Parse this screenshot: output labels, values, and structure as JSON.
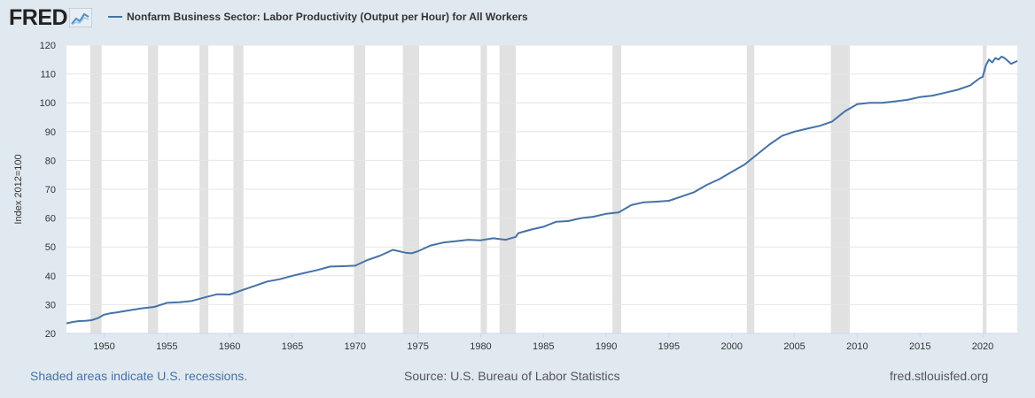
{
  "header": {
    "logo_text": "FRED",
    "logo_icon": "line-graph-icon",
    "legend_label": "Nonfarm Business Sector: Labor Productivity (Output per Hour) for All Workers",
    "series_color": "#4572a7"
  },
  "footer": {
    "recession_note": "Shaded areas indicate U.S. recessions.",
    "source": "Source: U.S. Bureau of Labor Statistics",
    "site": "fred.stlouisfed.org"
  },
  "chart_data": {
    "type": "line",
    "title": "",
    "xlabel": "",
    "ylabel": "Index 2012=100",
    "xlim": [
      1947.0,
      2022.75
    ],
    "ylim": [
      20,
      120
    ],
    "x_ticks": [
      1950,
      1955,
      1960,
      1965,
      1970,
      1975,
      1980,
      1985,
      1990,
      1995,
      2000,
      2005,
      2010,
      2015,
      2020
    ],
    "y_ticks": [
      20,
      30,
      40,
      50,
      60,
      70,
      80,
      90,
      100,
      110,
      120
    ],
    "grid": "horizontal",
    "background_color": "#ffffff",
    "recession_color": "#e1e1e1",
    "recessions": [
      [
        1948.9,
        1949.8
      ],
      [
        1953.5,
        1954.3
      ],
      [
        1957.6,
        1958.3
      ],
      [
        1960.3,
        1961.1
      ],
      [
        1969.9,
        1970.8
      ],
      [
        1973.8,
        1975.1
      ],
      [
        1980.0,
        1980.5
      ],
      [
        1981.5,
        1982.8
      ],
      [
        1990.5,
        1991.2
      ],
      [
        2001.2,
        2001.8
      ],
      [
        2007.9,
        2009.4
      ],
      [
        2020.0,
        2020.3
      ]
    ],
    "series": [
      {
        "values_x": [
          1947.0,
          1947.5,
          1948.0,
          1948.5,
          1949.0,
          1949.5,
          1950.0,
          1950.5,
          1951.0,
          1952.0,
          1953.0,
          1954.0,
          1955.0,
          1956.0,
          1957.0,
          1958.0,
          1959.0,
          1960.0,
          1961.0,
          1962.0,
          1963.0,
          1964.0,
          1965.0,
          1966.0,
          1967.0,
          1968.0,
          1969.0,
          1970.0,
          1971.0,
          1972.0,
          1973.0,
          1974.0,
          1974.5,
          1975.0,
          1976.0,
          1977.0,
          1978.0,
          1979.0,
          1980.0,
          1981.0,
          1982.0,
          1982.8,
          1983.0,
          1984.0,
          1985.0,
          1986.0,
          1987.0,
          1988.0,
          1989.0,
          1990.0,
          1991.0,
          1992.0,
          1993.0,
          1994.0,
          1995.0,
          1996.0,
          1997.0,
          1998.0,
          1999.0,
          2000.0,
          2001.0,
          2002.0,
          2003.0,
          2004.0,
          2005.0,
          2006.0,
          2007.0,
          2008.0,
          2009.0,
          2010.0,
          2011.0,
          2012.0,
          2013.0,
          2014.0,
          2015.0,
          2016.0,
          2017.0,
          2018.0,
          2019.0,
          2019.75,
          2020.0,
          2020.25,
          2020.5,
          2020.75,
          2021.0,
          2021.25,
          2021.5,
          2021.75,
          2022.0,
          2022.25,
          2022.5,
          2022.75
        ],
        "values_y": [
          23.5,
          24.0,
          24.3,
          24.4,
          24.6,
          25.3,
          26.5,
          27.0,
          27.3,
          28.0,
          28.7,
          29.2,
          30.6,
          30.8,
          31.3,
          32.5,
          33.6,
          33.5,
          35.0,
          36.5,
          38.0,
          38.8,
          40.0,
          41.0,
          42.0,
          43.2,
          43.3,
          43.5,
          45.5,
          47.0,
          49.0,
          48.0,
          47.8,
          48.5,
          50.5,
          51.5,
          52.0,
          52.5,
          52.3,
          53.0,
          52.5,
          53.5,
          54.8,
          56.0,
          57.0,
          58.7,
          59.0,
          60.0,
          60.5,
          61.5,
          62.0,
          64.5,
          65.5,
          65.7,
          66.0,
          67.5,
          69.0,
          71.5,
          73.5,
          76.0,
          78.5,
          82.0,
          85.5,
          88.5,
          90.0,
          91.0,
          92.0,
          93.5,
          97.0,
          99.5,
          100.0,
          100.0,
          100.5,
          101.0,
          102.0,
          102.5,
          103.5,
          104.5,
          106.0,
          108.5,
          109.0,
          113.0,
          115.0,
          114.0,
          115.5,
          115.0,
          116.0,
          115.5,
          114.5,
          113.5,
          114.0,
          114.5
        ]
      }
    ]
  }
}
